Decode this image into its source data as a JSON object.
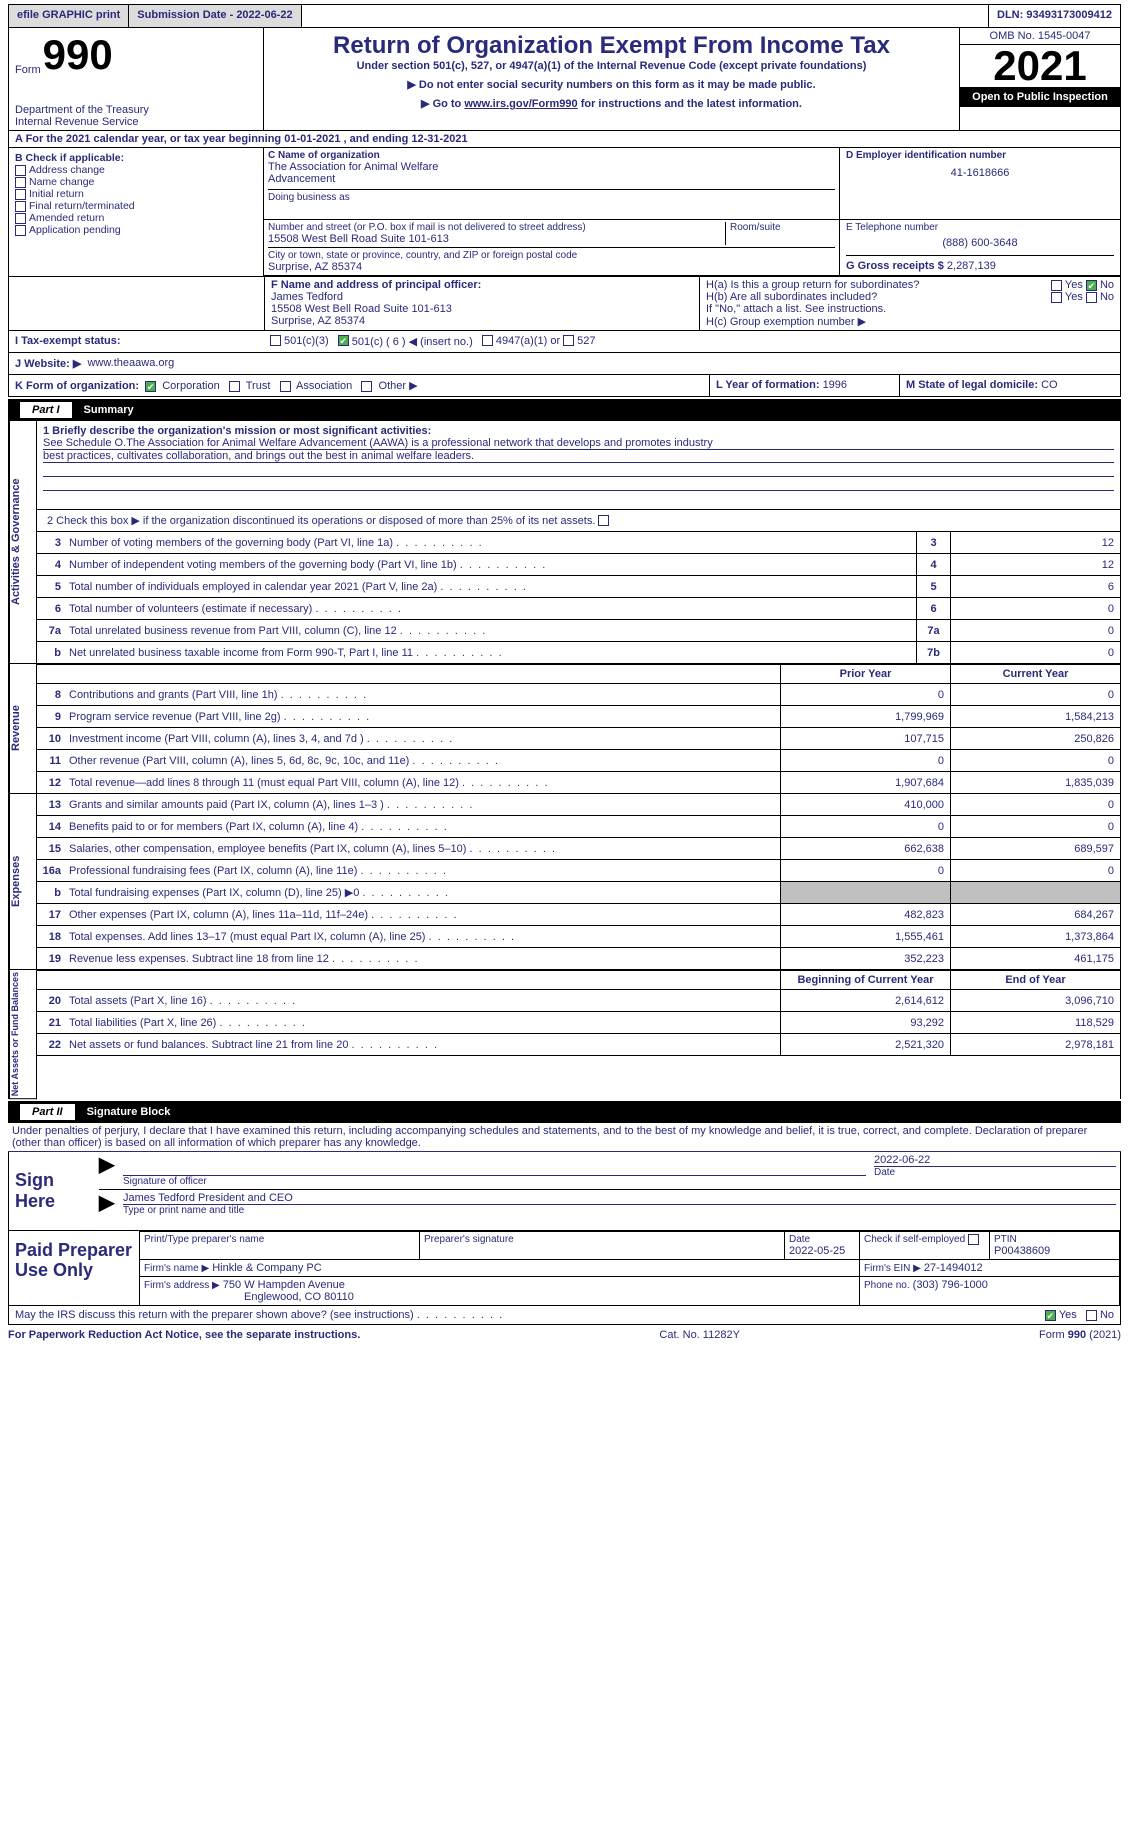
{
  "topbar": {
    "efile": "efile GRAPHIC print",
    "submission": "Submission Date - 2022-06-22",
    "dln_label": "DLN:",
    "dln": "93493173009412"
  },
  "header": {
    "formword": "Form",
    "formno": "990",
    "dept1": "Department of the Treasury",
    "dept2": "Internal Revenue Service",
    "title": "Return of Organization Exempt From Income Tax",
    "sub1": "Under section 501(c), 527, or 4947(a)(1) of the Internal Revenue Code (except private foundations)",
    "sub2": "▶ Do not enter social security numbers on this form as it may be made public.",
    "sub3a": "▶ Go to ",
    "sub3link": "www.irs.gov/Form990",
    "sub3b": " for instructions and the latest information.",
    "omb": "OMB No. 1545-0047",
    "year": "2021",
    "inspection": "Open to Public Inspection"
  },
  "row_a": {
    "text_a": "A For the 2021 calendar year, or tax year beginning ",
    "begin": "01-01-2021",
    "text_b": " , and ending ",
    "end": "12-31-2021"
  },
  "colB": {
    "lead": "B Check if applicable:",
    "items": [
      "Address change",
      "Name change",
      "Initial return",
      "Final return/terminated",
      "Amended return",
      "Application pending"
    ]
  },
  "colC": {
    "nameLabel": "C Name of organization",
    "name1": "The Association for Animal Welfare",
    "name2": "Advancement",
    "dbaLabel": "Doing business as",
    "addrLabel": "Number and street (or P.O. box if mail is not delivered to street address)",
    "room": "Room/suite",
    "addr": "15508 West Bell Road Suite 101-613",
    "cityLabel": "City or town, state or province, country, and ZIP or foreign postal code",
    "city": "Surprise, AZ  85374"
  },
  "colDE": {
    "dLabel": "D Employer identification number",
    "ein": "41-1618666",
    "eLabel": "E Telephone number",
    "phone": "(888) 600-3648",
    "gLabel": "G Gross receipts $",
    "gross": "2,287,139"
  },
  "rowFH": {
    "fLabel": "F Name and address of principal officer:",
    "fName": "James Tedford",
    "fAddr1": "15508 West Bell Road Suite 101-613",
    "fAddr2": "Surprise, AZ  85374",
    "ha": "H(a)  Is this a group return for subordinates?",
    "hb": "H(b)  Are all subordinates included?",
    "hbNote": "If \"No,\" attach a list. See instructions.",
    "hc": "H(c)  Group exemption number ▶",
    "yes": "Yes",
    "no": "No"
  },
  "rowI": {
    "label": "I    Tax-exempt status:",
    "c3": "501(c)(3)",
    "c": "501(c) ( 6 ) ◀ (insert no.)",
    "a1": "4947(a)(1) or",
    "s527": "527"
  },
  "rowJ": {
    "label": "J    Website: ▶",
    "site": "www.theaawa.org"
  },
  "rowK": {
    "label": "K Form of organization:",
    "opts": [
      "Corporation",
      "Trust",
      "Association",
      "Other ▶"
    ],
    "l": "L Year of formation: ",
    "lval": "1996",
    "m": "M State of legal domicile: ",
    "mval": "CO"
  },
  "part1": {
    "label": "Part I",
    "title": "Summary"
  },
  "summary": {
    "q1a": "1   Briefly describe the organization's mission or most significant activities:",
    "q1b": "See Schedule O.The Association for Animal Welfare Advancement (AAWA) is a professional network that develops and promotes industry",
    "q1c": "best practices, cultivates collaboration, and brings out the best in animal welfare leaders.",
    "q2": "2   Check this box ▶        if the organization discontinued its operations or disposed of more than 25% of its net assets.",
    "rows_single": [
      {
        "n": "3",
        "d": "Number of voting members of the governing body (Part VI, line 1a)",
        "box": "3",
        "v": "12"
      },
      {
        "n": "4",
        "d": "Number of independent voting members of the governing body (Part VI, line 1b)",
        "box": "4",
        "v": "12"
      },
      {
        "n": "5",
        "d": "Total number of individuals employed in calendar year 2021 (Part V, line 2a)",
        "box": "5",
        "v": "6"
      },
      {
        "n": "6",
        "d": "Total number of volunteers (estimate if necessary)",
        "box": "6",
        "v": "0"
      },
      {
        "n": "7a",
        "d": "Total unrelated business revenue from Part VIII, column (C), line 12",
        "box": "7a",
        "v": "0"
      },
      {
        "n": "b",
        "d": "Net unrelated business taxable income from Form 990-T, Part I, line 11",
        "box": "7b",
        "v": "0"
      }
    ],
    "twohdr": {
      "prior": "Prior Year",
      "current": "Current Year"
    },
    "revenue": [
      {
        "n": "8",
        "d": "Contributions and grants (Part VIII, line 1h)",
        "p": "0",
        "c": "0"
      },
      {
        "n": "9",
        "d": "Program service revenue (Part VIII, line 2g)",
        "p": "1,799,969",
        "c": "1,584,213"
      },
      {
        "n": "10",
        "d": "Investment income (Part VIII, column (A), lines 3, 4, and 7d )",
        "p": "107,715",
        "c": "250,826"
      },
      {
        "n": "11",
        "d": "Other revenue (Part VIII, column (A), lines 5, 6d, 8c, 9c, 10c, and 11e)",
        "p": "0",
        "c": "0"
      },
      {
        "n": "12",
        "d": "Total revenue—add lines 8 through 11 (must equal Part VIII, column (A), line 12)",
        "p": "1,907,684",
        "c": "1,835,039"
      }
    ],
    "expenses": [
      {
        "n": "13",
        "d": "Grants and similar amounts paid (Part IX, column (A), lines 1–3 )",
        "p": "410,000",
        "c": "0"
      },
      {
        "n": "14",
        "d": "Benefits paid to or for members (Part IX, column (A), line 4)",
        "p": "0",
        "c": "0"
      },
      {
        "n": "15",
        "d": "Salaries, other compensation, employee benefits (Part IX, column (A), lines 5–10)",
        "p": "662,638",
        "c": "689,597"
      },
      {
        "n": "16a",
        "d": "Professional fundraising fees (Part IX, column (A), line 11e)",
        "p": "0",
        "c": "0"
      },
      {
        "n": "b",
        "d": "Total fundraising expenses (Part IX, column (D), line 25) ▶0",
        "p": "grey",
        "c": "grey"
      },
      {
        "n": "17",
        "d": "Other expenses (Part IX, column (A), lines 11a–11d, 11f–24e)",
        "p": "482,823",
        "c": "684,267"
      },
      {
        "n": "18",
        "d": "Total expenses. Add lines 13–17 (must equal Part IX, column (A), line 25)",
        "p": "1,555,461",
        "c": "1,373,864"
      },
      {
        "n": "19",
        "d": "Revenue less expenses. Subtract line 18 from line 12",
        "p": "352,223",
        "c": "461,175"
      }
    ],
    "nethdr": {
      "begin": "Beginning of Current Year",
      "end": "End of Year"
    },
    "net": [
      {
        "n": "20",
        "d": "Total assets (Part X, line 16)",
        "p": "2,614,612",
        "c": "3,096,710"
      },
      {
        "n": "21",
        "d": "Total liabilities (Part X, line 26)",
        "p": "93,292",
        "c": "118,529"
      },
      {
        "n": "22",
        "d": "Net assets or fund balances. Subtract line 21 from line 20",
        "p": "2,521,320",
        "c": "2,978,181"
      }
    ],
    "sideLabels": {
      "ag": "Activities & Governance",
      "rev": "Revenue",
      "exp": "Expenses",
      "net": "Net Assets or Fund Balances"
    }
  },
  "part2": {
    "label": "Part II",
    "title": "Signature Block"
  },
  "sig": {
    "perjury": "Under penalties of perjury, I declare that I have examined this return, including accompanying schedules and statements, and to the best of my knowledge and belief, it is true, correct, and complete. Declaration of preparer (other than officer) is based on all information of which preparer has any knowledge.",
    "signHere": "Sign Here",
    "sigOfficer": "Signature of officer",
    "sigDate": "2022-06-22",
    "dateLabel": "Date",
    "typedName": "James Tedford President and CEO",
    "typedLabel": "Type or print name and title",
    "paid": "Paid Preparer Use Only",
    "pp_name": "Print/Type preparer's name",
    "pp_sig": "Preparer's signature",
    "pp_date": "Date",
    "pp_dateval": "2022-05-25",
    "pp_check": "Check          if self-employed",
    "ptin_lbl": "PTIN",
    "ptin": "P00438609",
    "firm_lbl": "Firm's name     ▶",
    "firm": "Hinkle & Company PC",
    "firm_ein_lbl": "Firm's EIN ▶",
    "firm_ein": "27-1494012",
    "firm_addr_lbl": "Firm's address ▶",
    "firm_addr1": "750 W Hampden Avenue",
    "firm_addr2": "Englewood, CO  80110",
    "firm_phone_lbl": "Phone no.",
    "firm_phone": "(303) 796-1000",
    "discuss": "May the IRS discuss this return with the preparer shown above? (see instructions)",
    "yes": "Yes",
    "no": "No"
  },
  "footer": {
    "left": "For Paperwork Reduction Act Notice, see the separate instructions.",
    "mid": "Cat. No. 11282Y",
    "right": "Form 990 (2021)"
  }
}
